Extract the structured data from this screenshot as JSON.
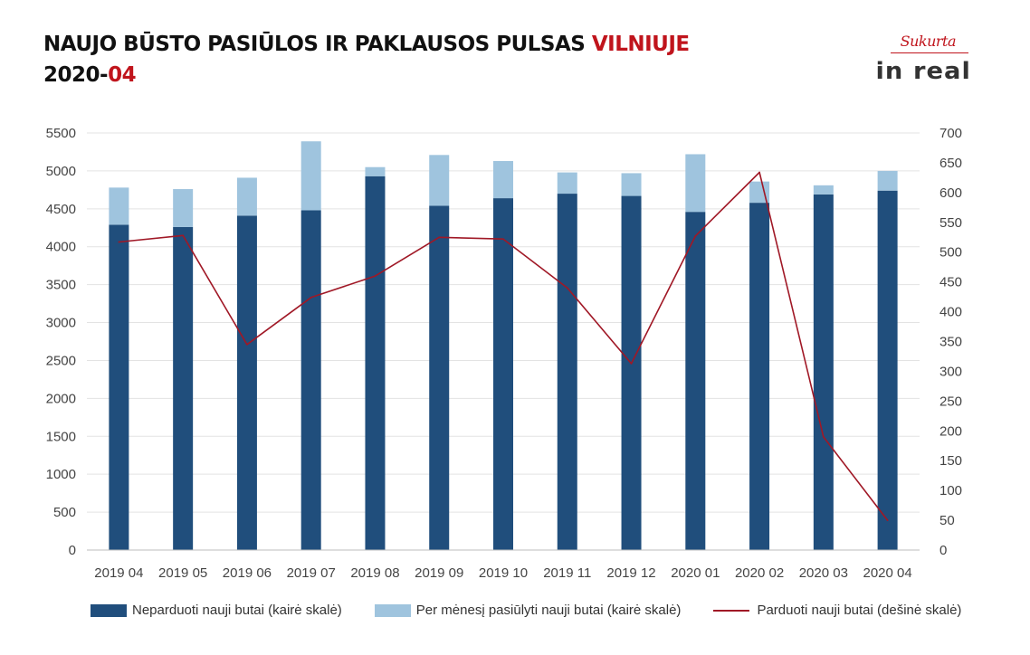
{
  "title": {
    "line1_prefix": "NAUJO BŪSTO PASIŪLOS IR PAKLAUSOS PULSAS ",
    "line1_accent": "VILNIUJE",
    "line2_prefix": "2020-",
    "line2_accent": "04"
  },
  "logo": {
    "sukurta": "Sukurta",
    "brand": "in real"
  },
  "colors": {
    "accent": "#c0141c",
    "unsold": "#204e7c",
    "offered": "#9fc4de",
    "sold_line": "#a01826",
    "grid": "#e3e3e3",
    "axis": "#bdbdbd"
  },
  "chart_data": {
    "type": "bar",
    "stacked": true,
    "categories": [
      "2019 04",
      "2019 05",
      "2019 06",
      "2019 07",
      "2019 08",
      "2019 09",
      "2019 10",
      "2019 11",
      "2019 12",
      "2020 01",
      "2020 02",
      "2020 03",
      "2020 04"
    ],
    "y_left": {
      "min": 0,
      "max": 5500,
      "step": 500,
      "ticks": [
        "0",
        "500",
        "1000",
        "1500",
        "2000",
        "2500",
        "3000",
        "3500",
        "4000",
        "4500",
        "5000",
        "5500"
      ]
    },
    "y_right": {
      "min": 0,
      "max": 700,
      "step": 50,
      "ticks": [
        "0",
        "50",
        "100",
        "150",
        "200",
        "250",
        "300",
        "350",
        "400",
        "450",
        "500",
        "550",
        "600",
        "650",
        "700"
      ]
    },
    "grid": true,
    "legend_position": "bottom",
    "series": [
      {
        "name": "Neparduoti nauji butai (kairė skalė)",
        "type": "bar",
        "axis": "left",
        "values": [
          4290,
          4260,
          4410,
          4480,
          4930,
          4540,
          4640,
          4700,
          4670,
          4460,
          4580,
          4690,
          4740
        ]
      },
      {
        "name": "Per mėnesį pasiūlyti nauji butai (kairė skalė)",
        "type": "bar",
        "axis": "left",
        "values": [
          490,
          500,
          500,
          910,
          120,
          670,
          490,
          280,
          300,
          760,
          280,
          120,
          260
        ]
      },
      {
        "name": "Parduoti nauji butai (dešinė skalė)",
        "type": "line",
        "axis": "right",
        "values": [
          517,
          528,
          345,
          424,
          460,
          525,
          522,
          440,
          313,
          527,
          634,
          190,
          50
        ]
      }
    ]
  }
}
